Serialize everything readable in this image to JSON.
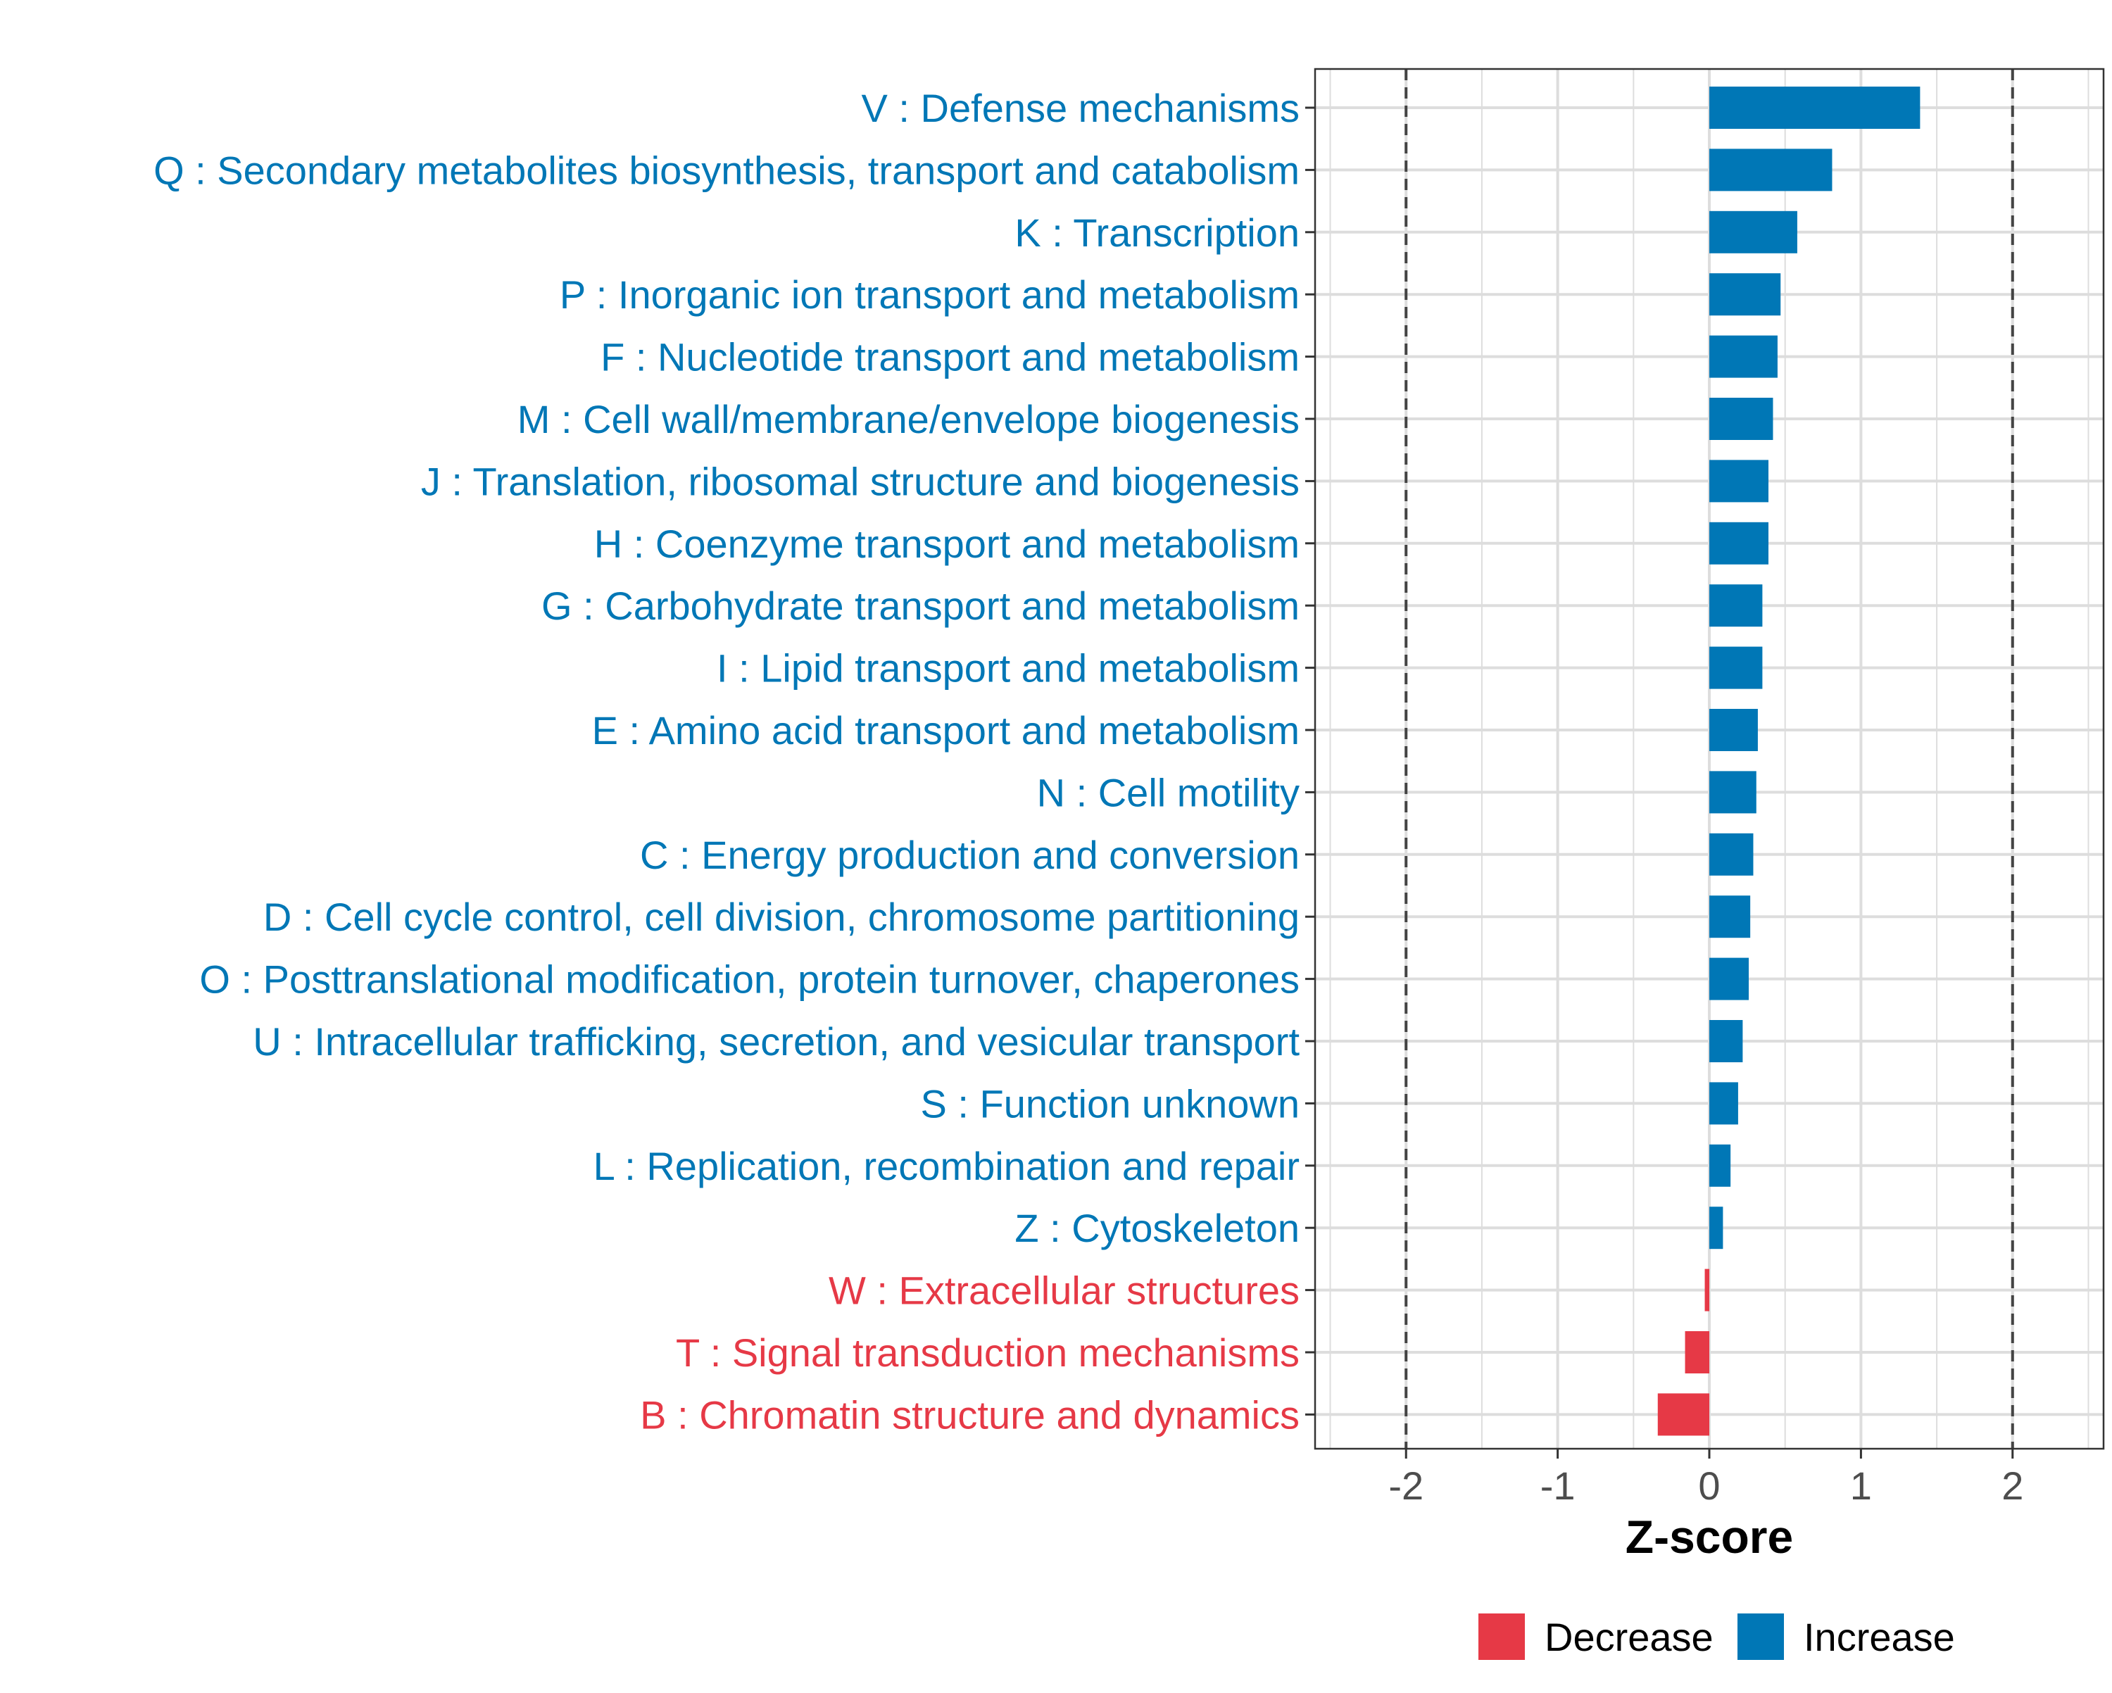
{
  "chart_data": {
    "type": "bar",
    "orientation": "horizontal",
    "title": "",
    "xlabel": "Z-score",
    "ylabel": "",
    "xlim": [
      -2.6,
      2.6
    ],
    "x_ticks": [
      -2,
      -1,
      0,
      1,
      2
    ],
    "x_tick_labels": [
      "-2",
      "-1",
      "0",
      "1",
      "2"
    ],
    "reference_lines": [
      -2,
      2
    ],
    "grid": true,
    "categories": [
      "V : Defense mechanisms",
      "Q : Secondary metabolites biosynthesis, transport and catabolism",
      "K : Transcription",
      "P : Inorganic ion transport and metabolism",
      "F : Nucleotide transport and metabolism",
      "M : Cell wall/membrane/envelope biogenesis",
      "J : Translation, ribosomal structure and biogenesis",
      "H : Coenzyme transport and metabolism",
      "G : Carbohydrate transport and metabolism",
      "I : Lipid transport and metabolism",
      "E : Amino acid transport and metabolism",
      "N : Cell motility",
      "C : Energy production and conversion",
      "D : Cell cycle control, cell division, chromosome partitioning",
      "O : Posttranslational modification, protein turnover, chaperones",
      "U : Intracellular trafficking, secretion, and vesicular transport",
      "S : Function unknown",
      "L : Replication, recombination and repair",
      "Z : Cytoskeleton",
      "W : Extracellular structures",
      "T : Signal transduction mechanisms",
      "B : Chromatin structure and dynamics"
    ],
    "values": [
      1.39,
      0.81,
      0.58,
      0.47,
      0.45,
      0.42,
      0.39,
      0.39,
      0.35,
      0.35,
      0.32,
      0.31,
      0.29,
      0.27,
      0.26,
      0.22,
      0.19,
      0.14,
      0.09,
      -0.03,
      -0.16,
      -0.34
    ],
    "groups": [
      "Increase",
      "Increase",
      "Increase",
      "Increase",
      "Increase",
      "Increase",
      "Increase",
      "Increase",
      "Increase",
      "Increase",
      "Increase",
      "Increase",
      "Increase",
      "Increase",
      "Increase",
      "Increase",
      "Increase",
      "Increase",
      "Increase",
      "Decrease",
      "Decrease",
      "Decrease"
    ],
    "legend": {
      "position": "bottom",
      "entries": [
        {
          "label": "Decrease",
          "color": "#E63946"
        },
        {
          "label": "Increase",
          "color": "#0077B6"
        }
      ]
    },
    "colors": {
      "Increase": "#0077B6",
      "Decrease": "#E63946"
    }
  }
}
